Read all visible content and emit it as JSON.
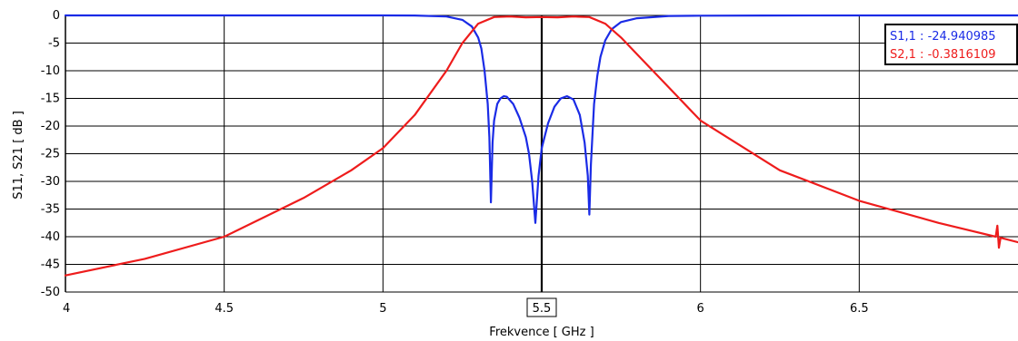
{
  "chart_data": {
    "type": "line",
    "xlabel": "Frekvence [ GHz ]",
    "ylabel": "S11, S21 [ dB ]",
    "xlim": [
      4,
      7
    ],
    "ylim": [
      -50,
      0
    ],
    "x_ticks": [
      "4",
      "4.5",
      "5",
      "5.5",
      "6",
      "6.5"
    ],
    "y_ticks": [
      "0",
      "-5",
      "-10",
      "-15",
      "-20",
      "-25",
      "-30",
      "-35",
      "-40",
      "-45",
      "-50"
    ],
    "highlighted_x_tick": "5.5",
    "grid": true,
    "legend_position": "top-right",
    "colors": {
      "s11": "#1a2be6",
      "s21": "#ee1c1c"
    },
    "legend": [
      {
        "label": "S1,1 : -24.940985",
        "color": "#1a2be6"
      },
      {
        "label": "S2,1 : -0.3816109",
        "color": "#ee1c1c"
      }
    ],
    "series": [
      {
        "name": "S1,1",
        "color": "#1a2be6",
        "points": [
          [
            4.0,
            0
          ],
          [
            5.0,
            0
          ],
          [
            5.1,
            -0.02
          ],
          [
            5.2,
            -0.2
          ],
          [
            5.25,
            -0.8
          ],
          [
            5.28,
            -2.0
          ],
          [
            5.3,
            -4.0
          ],
          [
            5.31,
            -6.0
          ],
          [
            5.32,
            -10.0
          ],
          [
            5.33,
            -16.0
          ],
          [
            5.335,
            -22.0
          ],
          [
            5.34,
            -33.8
          ],
          [
            5.345,
            -23.0
          ],
          [
            5.35,
            -19.0
          ],
          [
            5.36,
            -16.0
          ],
          [
            5.37,
            -15.0
          ],
          [
            5.38,
            -14.6
          ],
          [
            5.39,
            -14.7
          ],
          [
            5.41,
            -16.0
          ],
          [
            5.43,
            -18.5
          ],
          [
            5.45,
            -22.0
          ],
          [
            5.46,
            -25.0
          ],
          [
            5.47,
            -30.0
          ],
          [
            5.48,
            -37.5
          ],
          [
            5.49,
            -29.0
          ],
          [
            5.5,
            -24.0
          ],
          [
            5.52,
            -19.5
          ],
          [
            5.54,
            -16.5
          ],
          [
            5.56,
            -15.0
          ],
          [
            5.58,
            -14.6
          ],
          [
            5.6,
            -15.2
          ],
          [
            5.62,
            -18.0
          ],
          [
            5.635,
            -23.0
          ],
          [
            5.645,
            -29.0
          ],
          [
            5.65,
            -36.0
          ],
          [
            5.655,
            -27.0
          ],
          [
            5.665,
            -16.0
          ],
          [
            5.675,
            -11.0
          ],
          [
            5.685,
            -7.5
          ],
          [
            5.7,
            -4.5
          ],
          [
            5.72,
            -2.5
          ],
          [
            5.75,
            -1.2
          ],
          [
            5.8,
            -0.5
          ],
          [
            5.9,
            -0.1
          ],
          [
            6.0,
            -0.05
          ],
          [
            6.2,
            -0.02
          ],
          [
            7.0,
            0
          ]
        ]
      },
      {
        "name": "S2,1",
        "color": "#ee1c1c",
        "points": [
          [
            4.0,
            -47.0
          ],
          [
            4.25,
            -44.0
          ],
          [
            4.5,
            -40.0
          ],
          [
            4.75,
            -33.0
          ],
          [
            4.9,
            -28.0
          ],
          [
            5.0,
            -24.0
          ],
          [
            5.1,
            -18.0
          ],
          [
            5.2,
            -10.0
          ],
          [
            5.25,
            -5.0
          ],
          [
            5.3,
            -1.5
          ],
          [
            5.35,
            -0.3
          ],
          [
            5.4,
            -0.2
          ],
          [
            5.45,
            -0.35
          ],
          [
            5.5,
            -0.3
          ],
          [
            5.55,
            -0.35
          ],
          [
            5.6,
            -0.2
          ],
          [
            5.65,
            -0.3
          ],
          [
            5.7,
            -1.5
          ],
          [
            5.75,
            -4.0
          ],
          [
            5.8,
            -7.0
          ],
          [
            5.9,
            -13.0
          ],
          [
            6.0,
            -19.0
          ],
          [
            6.25,
            -28.0
          ],
          [
            6.5,
            -33.5
          ],
          [
            6.75,
            -37.5
          ],
          [
            6.93,
            -40.0
          ],
          [
            6.935,
            -38.0
          ],
          [
            6.94,
            -42.0
          ],
          [
            6.945,
            -40.2
          ],
          [
            7.0,
            -41.0
          ]
        ]
      }
    ]
  }
}
